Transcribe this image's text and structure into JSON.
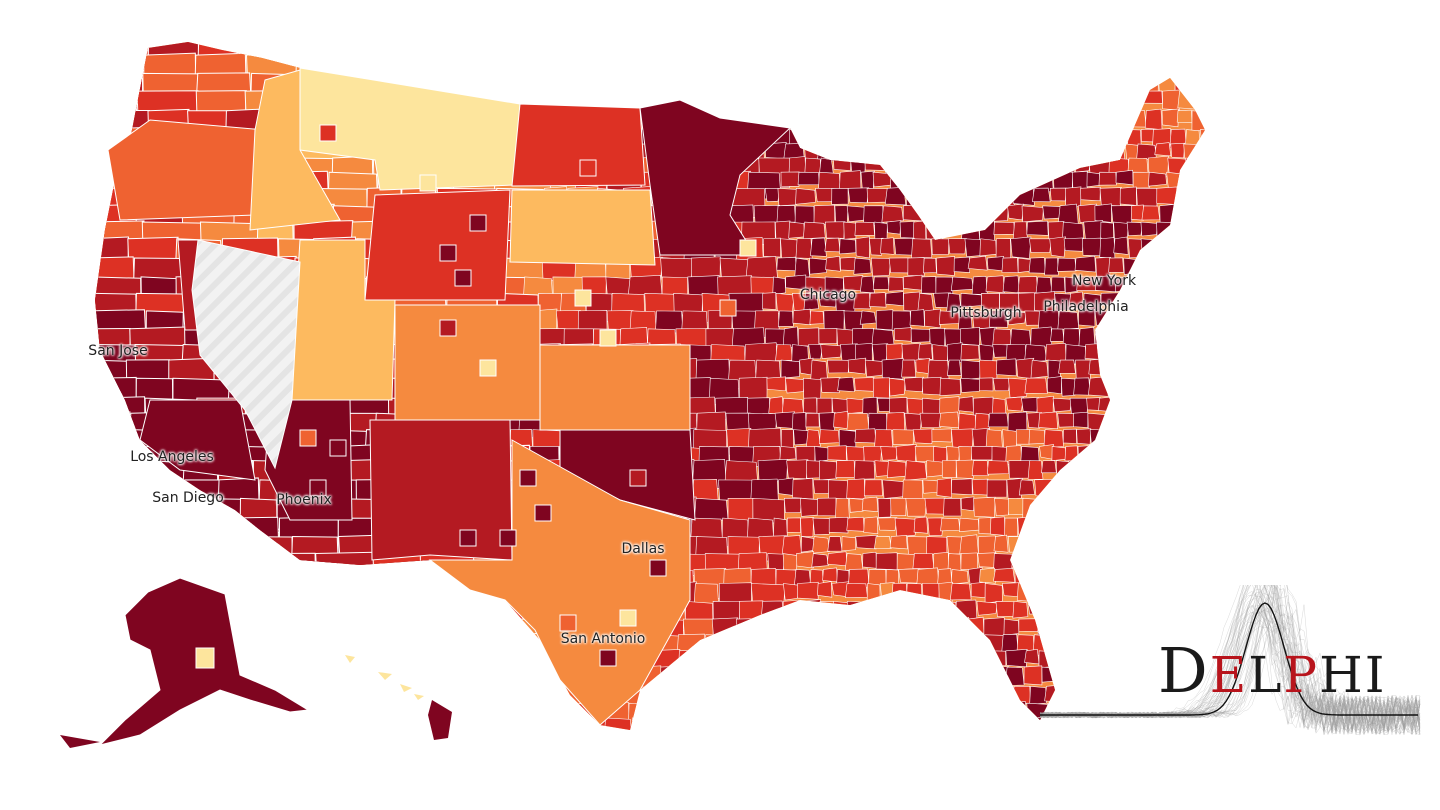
{
  "colors": {
    "c1": "#fde59d",
    "c2": "#fdba5f",
    "c3": "#f58a3f",
    "c4": "#ef6231",
    "c5": "#dd3124",
    "c6": "#b41a22",
    "c7": "#7f0520",
    "nodata": "#f2f2f2",
    "border": "#ffffff"
  },
  "cities": [
    {
      "name": "San Jose"
    },
    {
      "name": "Los Angeles"
    },
    {
      "name": "San Diego"
    },
    {
      "name": "Phoenix"
    },
    {
      "name": "Chicago"
    },
    {
      "name": "Pittsburgh"
    },
    {
      "name": "New York"
    },
    {
      "name": "Philadelphia"
    },
    {
      "name": "Dallas"
    },
    {
      "name": "San Antonio"
    }
  ],
  "logo": {
    "text": "DELPHI",
    "red_letters": "E, P"
  }
}
